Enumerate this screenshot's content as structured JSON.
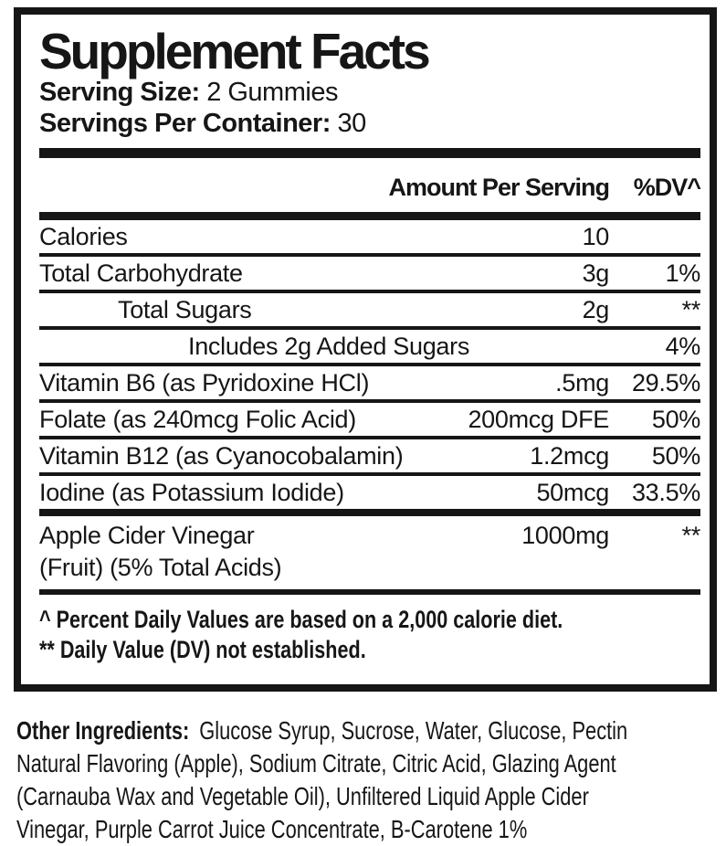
{
  "panel": {
    "title": "Supplement Facts",
    "serving_size_label": "Serving Size:",
    "serving_size_value": "2 Gummies",
    "servings_per_container_label": "Servings Per Container:",
    "servings_per_container_value": "30",
    "column_headers": {
      "amount": "Amount Per Serving",
      "dv": "%DV^"
    },
    "rows": [
      {
        "name": "Calories",
        "amount": "10",
        "dv": ""
      },
      {
        "name": "Total Carbohydrate",
        "amount": "3g",
        "dv": "1%"
      },
      {
        "name": "Total Sugars",
        "amount": "2g",
        "dv": "**"
      },
      {
        "name": "Includes 2g Added Sugars",
        "amount": "",
        "dv": "4%"
      },
      {
        "name": "Vitamin B6 (as Pyridoxine HCl)",
        "amount": ".5mg",
        "dv": "29.5%"
      },
      {
        "name": "Folate (as 240mcg Folic Acid)",
        "amount": "200mcg DFE",
        "dv": "50%"
      },
      {
        "name": "Vitamin B12 (as Cyanocobalamin)",
        "amount": "1.2mcg",
        "dv": "50%"
      },
      {
        "name": "Iodine (as Potassium Iodide)",
        "amount": "50mcg",
        "dv": "33.5%"
      },
      {
        "name": "Apple Cider Vinegar",
        "name_line2": "(Fruit) (5% Total Acids)",
        "amount": "1000mg",
        "dv": "**"
      }
    ],
    "footnotes": [
      "^ Percent Daily Values are based on a 2,000 calorie diet.",
      "** Daily Value (DV) not established."
    ]
  },
  "other_ingredients": {
    "label": "Other Ingredients:",
    "lines": [
      "Glucose Syrup, Sucrose, Water, Glucose, Pectin",
      "Natural Flavoring (Apple), Sodium Citrate, Citric Acid, Glazing Agent",
      "(Carnauba Wax and Vegetable Oil), Unfiltered Liquid Apple Cider",
      "Vinegar, Purple Carrot Juice Concentrate, B-Carotene 1%"
    ]
  },
  "colors": {
    "ink": "#161616",
    "background": "#ffffff"
  }
}
